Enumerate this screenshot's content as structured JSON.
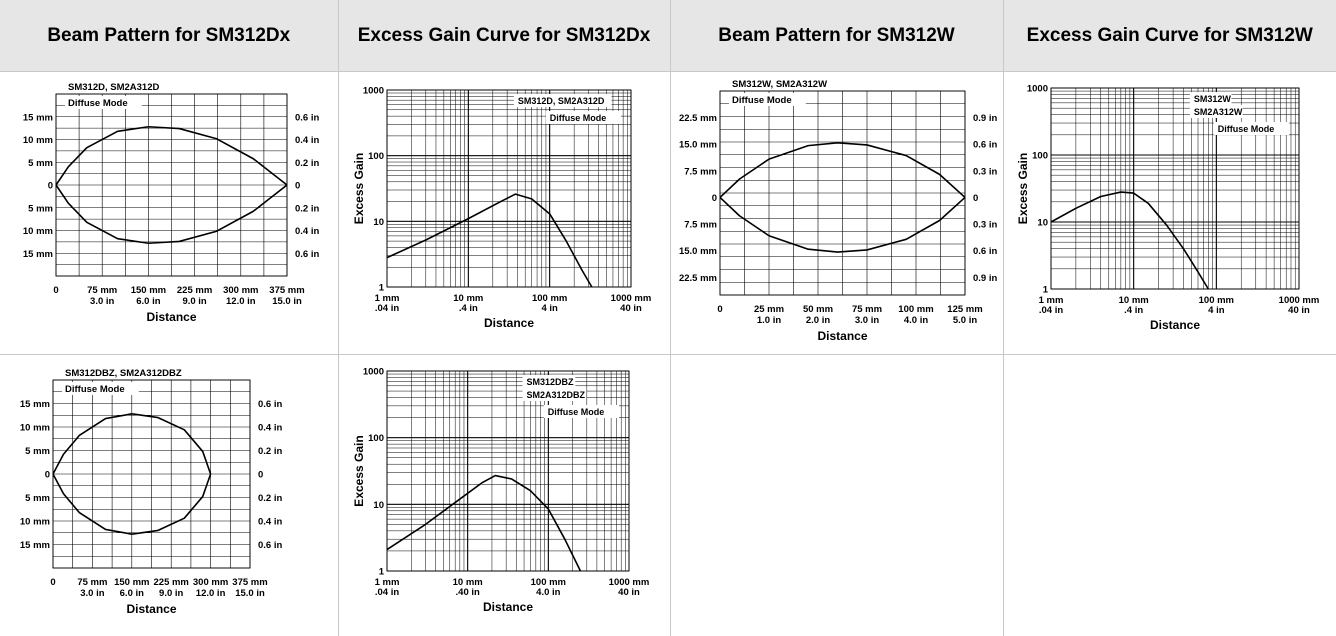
{
  "headers": [
    "Beam Pattern for SM312Dx",
    "Excess Gain Curve for SM312Dx",
    "Beam Pattern for SM312W",
    "Excess Gain Curve for SM312W"
  ],
  "chart_data": [
    {
      "type": "line",
      "xlabel": "Distance",
      "x_ticks": [
        [
          "0"
        ],
        [
          "75 mm",
          "3.0 in"
        ],
        [
          "150 mm",
          "6.0 in"
        ],
        [
          "225 mm",
          "9.0 in"
        ],
        [
          "300 mm",
          "12.0 in"
        ],
        [
          "375 mm",
          "15.0 in"
        ]
      ],
      "xlim": [
        0,
        375
      ],
      "ylim": [
        -20,
        20
      ],
      "y_ticks": [
        15,
        10,
        5,
        0,
        -5,
        -10,
        -15
      ],
      "y_left_labels": [
        "15 mm",
        "10 mm",
        "5 mm",
        "0",
        "5 mm",
        "10 mm",
        "15 mm"
      ],
      "y_right_labels": [
        "0.6 in",
        "0.4 in",
        "0.2 in",
        "0",
        "0.2 in",
        "0.4 in",
        "0.6 in"
      ],
      "annotations": [
        "SM312D, SM2A312D",
        "Diffuse Mode"
      ],
      "series": [
        {
          "x": [
            0,
            20,
            50,
            100,
            150,
            200,
            260,
            320,
            375
          ],
          "y": [
            0,
            4,
            8.2,
            11.8,
            12.8,
            12.4,
            10.2,
            5.8,
            0
          ]
        },
        {
          "x": [
            0,
            20,
            50,
            100,
            150,
            200,
            260,
            320,
            375
          ],
          "y": [
            0,
            -4,
            -8.2,
            -11.8,
            -12.8,
            -12.4,
            -10.2,
            -5.8,
            0
          ]
        }
      ]
    },
    {
      "type": "line",
      "log_scale": true,
      "ylabel": "Excess Gain",
      "xlabel": "Distance",
      "xlim": [
        1,
        1000
      ],
      "ylim": [
        1,
        1000
      ],
      "x_ticks": [
        [
          "1 mm",
          ".04 in"
        ],
        [
          "10 mm",
          ".4 in"
        ],
        [
          "100 mm",
          "4 in"
        ],
        [
          "1000 mm",
          "40 in"
        ]
      ],
      "y_ticks": [
        "1",
        "10",
        "100",
        "1000"
      ],
      "annotations": [
        "SM312D, SM2A312D",
        "Diffuse Mode"
      ],
      "series": [
        {
          "x": [
            1,
            3,
            10,
            25,
            38,
            60,
            100,
            160,
            250,
            330
          ],
          "y": [
            2.8,
            5.2,
            11,
            20,
            26,
            22,
            13,
            5,
            1.8,
            1
          ]
        }
      ]
    },
    {
      "type": "line",
      "xlabel": "Distance",
      "x_ticks": [
        [
          "0"
        ],
        [
          "25 mm",
          "1.0 in"
        ],
        [
          "50 mm",
          "2.0 in"
        ],
        [
          "75 mm",
          "3.0 in"
        ],
        [
          "100 mm",
          "4.0 in"
        ],
        [
          "125 mm",
          "5.0 in"
        ]
      ],
      "xlim": [
        0,
        125
      ],
      "ylim": [
        -27.5,
        30
      ],
      "y_ticks": [
        22.5,
        15,
        7.5,
        0,
        -7.5,
        -15,
        -22.5
      ],
      "y_left_labels": [
        "22.5 mm",
        "15.0 mm",
        "7.5 mm",
        "0",
        "7.5 mm",
        "15.0 mm",
        "22.5 mm"
      ],
      "y_right_labels": [
        "0.9 in",
        "0.6 in",
        "0.3 in",
        "0",
        "0.3 in",
        "0.6 in",
        "0.9 in"
      ],
      "annotations": [
        "SM312W, SM2A312W",
        "Diffuse Mode"
      ],
      "series": [
        {
          "x": [
            0,
            10,
            25,
            45,
            60,
            75,
            95,
            112,
            125
          ],
          "y": [
            0,
            5.2,
            10.8,
            14.6,
            15.4,
            14.8,
            11.8,
            6.5,
            0
          ]
        },
        {
          "x": [
            0,
            10,
            25,
            45,
            60,
            75,
            95,
            112,
            125
          ],
          "y": [
            0,
            -5.2,
            -10.8,
            -14.6,
            -15.4,
            -14.8,
            -11.8,
            -6.5,
            0
          ]
        }
      ]
    },
    {
      "type": "line",
      "log_scale": true,
      "ylabel": "Excess Gain",
      "xlabel": "Distance",
      "xlim": [
        1,
        1000
      ],
      "ylim": [
        1,
        1000
      ],
      "x_ticks": [
        [
          "1 mm",
          ".04 in"
        ],
        [
          "10 mm",
          ".4 in"
        ],
        [
          "100 mm",
          "4 in"
        ],
        [
          "1000 mm",
          "40 in"
        ]
      ],
      "y_ticks": [
        "1",
        "10",
        "100",
        "1000"
      ],
      "annotations": [
        "SM312W",
        "SM2A312W",
        "Diffuse Mode"
      ],
      "series": [
        {
          "x": [
            1,
            2,
            4,
            7,
            10,
            15,
            25,
            40,
            60,
            80
          ],
          "y": [
            10,
            16,
            24,
            28,
            27,
            19,
            9,
            4,
            1.8,
            1
          ]
        }
      ]
    },
    {
      "type": "line",
      "xlabel": "Distance",
      "x_ticks": [
        [
          "0"
        ],
        [
          "75 mm",
          "3.0 in"
        ],
        [
          "150 mm",
          "6.0 in"
        ],
        [
          "225 mm",
          "9.0 in"
        ],
        [
          "300 mm",
          "12.0 in"
        ],
        [
          "375 mm",
          "15.0 in"
        ]
      ],
      "xlim": [
        0,
        375
      ],
      "ylim": [
        -20,
        20
      ],
      "y_ticks": [
        15,
        10,
        5,
        0,
        -5,
        -10,
        -15
      ],
      "y_left_labels": [
        "15 mm",
        "10 mm",
        "5 mm",
        "0",
        "5 mm",
        "10 mm",
        "15 mm"
      ],
      "y_right_labels": [
        "0.6 in",
        "0.4 in",
        "0.2 in",
        "0",
        "0.2 in",
        "0.4 in",
        "0.6 in"
      ],
      "annotations": [
        "SM312DBZ, SM2A312DBZ",
        "Diffuse Mode"
      ],
      "series": [
        {
          "x": [
            0,
            20,
            50,
            100,
            150,
            200,
            250,
            285,
            300
          ],
          "y": [
            0,
            4.2,
            8.2,
            11.8,
            12.8,
            12,
            9.4,
            4.8,
            0
          ]
        },
        {
          "x": [
            0,
            20,
            50,
            100,
            150,
            200,
            250,
            285,
            300
          ],
          "y": [
            0,
            -4.2,
            -8.2,
            -11.8,
            -12.8,
            -12,
            -9.4,
            -4.8,
            0
          ]
        }
      ]
    },
    {
      "type": "line",
      "log_scale": true,
      "ylabel": "Excess Gain",
      "xlabel": "Distance",
      "xlim": [
        1,
        1000
      ],
      "ylim": [
        1,
        1000
      ],
      "x_ticks": [
        [
          "1 mm",
          ".04 in"
        ],
        [
          "10 mm",
          ".40 in"
        ],
        [
          "100 mm",
          "4.0 in"
        ],
        [
          "1000 mm",
          "40 in"
        ]
      ],
      "y_ticks": [
        "1",
        "10",
        "100",
        "1000"
      ],
      "annotations": [
        "SM312DBZ",
        "SM2A312DBZ",
        "Diffuse Mode"
      ],
      "series": [
        {
          "x": [
            1,
            3,
            8,
            15,
            22,
            35,
            60,
            100,
            160,
            250
          ],
          "y": [
            2.1,
            5,
            12,
            21,
            27,
            24,
            16,
            8.5,
            3,
            1
          ]
        }
      ]
    }
  ]
}
